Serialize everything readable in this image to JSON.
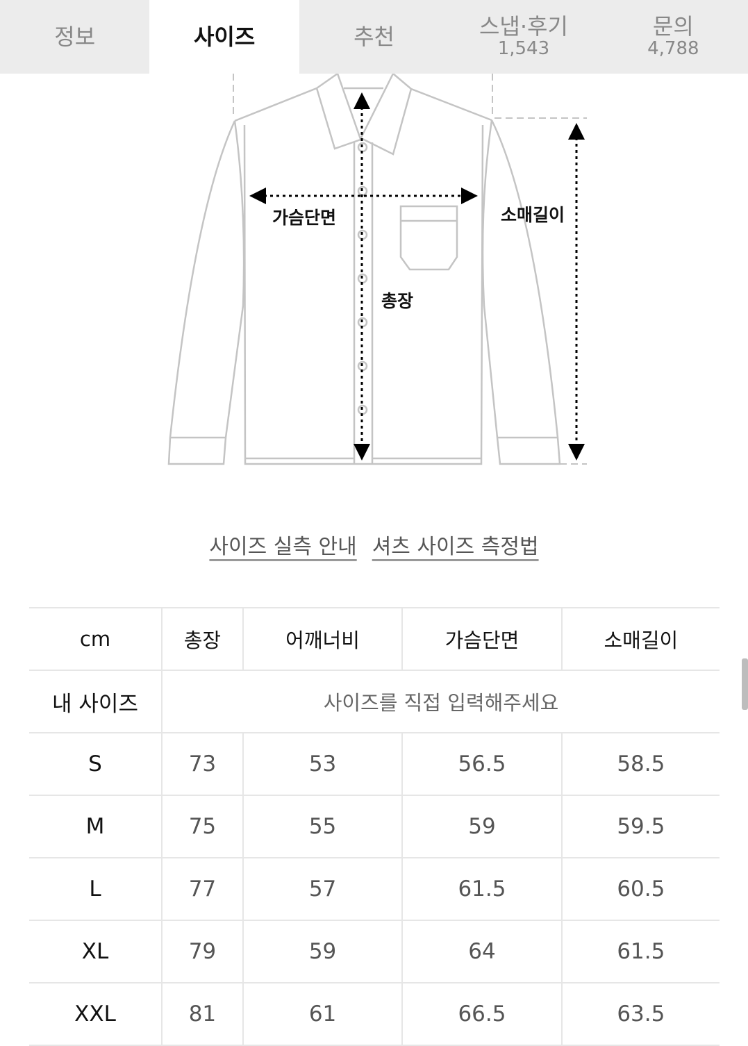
{
  "tabs": [
    {
      "label": "정보",
      "count": null,
      "active": false
    },
    {
      "label": "사이즈",
      "count": null,
      "active": true
    },
    {
      "label": "추천",
      "count": null,
      "active": false
    },
    {
      "label": "스냅·후기",
      "count": "1,543",
      "active": false
    },
    {
      "label": "문의",
      "count": "4,788",
      "active": false
    }
  ],
  "diagram": {
    "chest_label": "가슴단면",
    "length_label": "총장",
    "sleeve_label": "소매길이"
  },
  "links": {
    "size_guide": "사이즈 실측 안내",
    "shirt_measure": "셔츠 사이즈 측정법"
  },
  "table": {
    "headers": [
      "cm",
      "총장",
      "어깨너비",
      "가슴단면",
      "소매길이"
    ],
    "my_size_label": "내 사이즈",
    "my_size_prompt": "사이즈를 직접 입력해주세요",
    "rows": [
      [
        "S",
        "73",
        "53",
        "56.5",
        "58.5"
      ],
      [
        "M",
        "75",
        "55",
        "59",
        "59.5"
      ],
      [
        "L",
        "77",
        "57",
        "61.5",
        "60.5"
      ],
      [
        "XL",
        "79",
        "59",
        "64",
        "61.5"
      ],
      [
        "XXL",
        "81",
        "61",
        "66.5",
        "63.5"
      ]
    ]
  }
}
